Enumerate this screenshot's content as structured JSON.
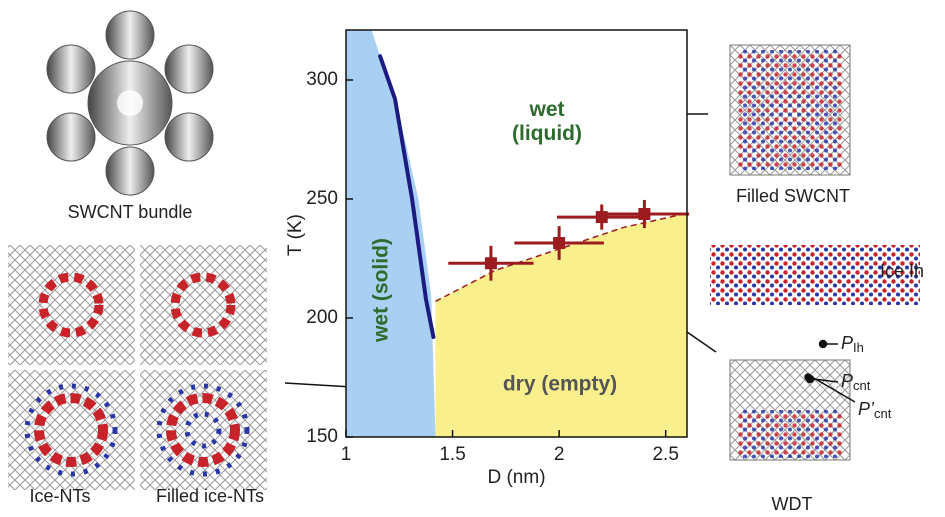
{
  "chart_data": {
    "type": "phase",
    "xlabel": "D (nm)",
    "ylabel": "T (K)",
    "xlim": [
      1,
      2.6
    ],
    "xticks": [
      1,
      1.5,
      2,
      2.5
    ],
    "ylim": [
      150,
      321
    ],
    "yticks": [
      150,
      200,
      250,
      300
    ],
    "regions": [
      {
        "name": "wet (liquid)",
        "color": "#ffffff"
      },
      {
        "name": "wet (solid)",
        "color": "#a9cff2",
        "x": [
          1.12,
          1.25,
          1.34,
          1.4,
          1.42
        ],
        "y": [
          321,
          285,
          250,
          209,
          150
        ]
      },
      {
        "name": "dry (empty)",
        "color": "#f9ef8c"
      }
    ],
    "melting_line": {
      "color": "#1c1c80",
      "x": [
        1.16,
        1.23,
        1.31,
        1.375,
        1.41
      ],
      "y": [
        310,
        292,
        250,
        208,
        192
      ]
    },
    "dry_boundary": {
      "color": "#9b1b1f",
      "x": [
        1.42,
        1.7,
        2.0,
        2.3,
        2.6
      ],
      "y": [
        207,
        220,
        229,
        238,
        244
      ]
    },
    "points": {
      "color": "#9b1b1f",
      "x": [
        1.68,
        2.0,
        2.2,
        2.4
      ],
      "y": [
        223,
        231.5,
        242.4,
        243.7
      ],
      "xerr": [
        0.2,
        0.21,
        0.21,
        0.21
      ],
      "yerr": [
        7.3,
        7.1,
        5.3,
        5.9
      ]
    },
    "figure_labels": {
      "bundle": "SWCNT bundle",
      "ice_nts": "Ice-NTs",
      "filled_ice_nts": "Filled ice-NTs",
      "filled_swcnt": "Filled SWCNT",
      "ice_ih": "Ice Ih",
      "wdt": "WDT",
      "p_ih": {
        "symbol": "P",
        "sub": "Ih"
      },
      "p_cnt": {
        "symbol": "P",
        "sub": "cnt"
      },
      "p_cnt_prime": {
        "symbol": "P’",
        "sub": "cnt"
      }
    }
  }
}
